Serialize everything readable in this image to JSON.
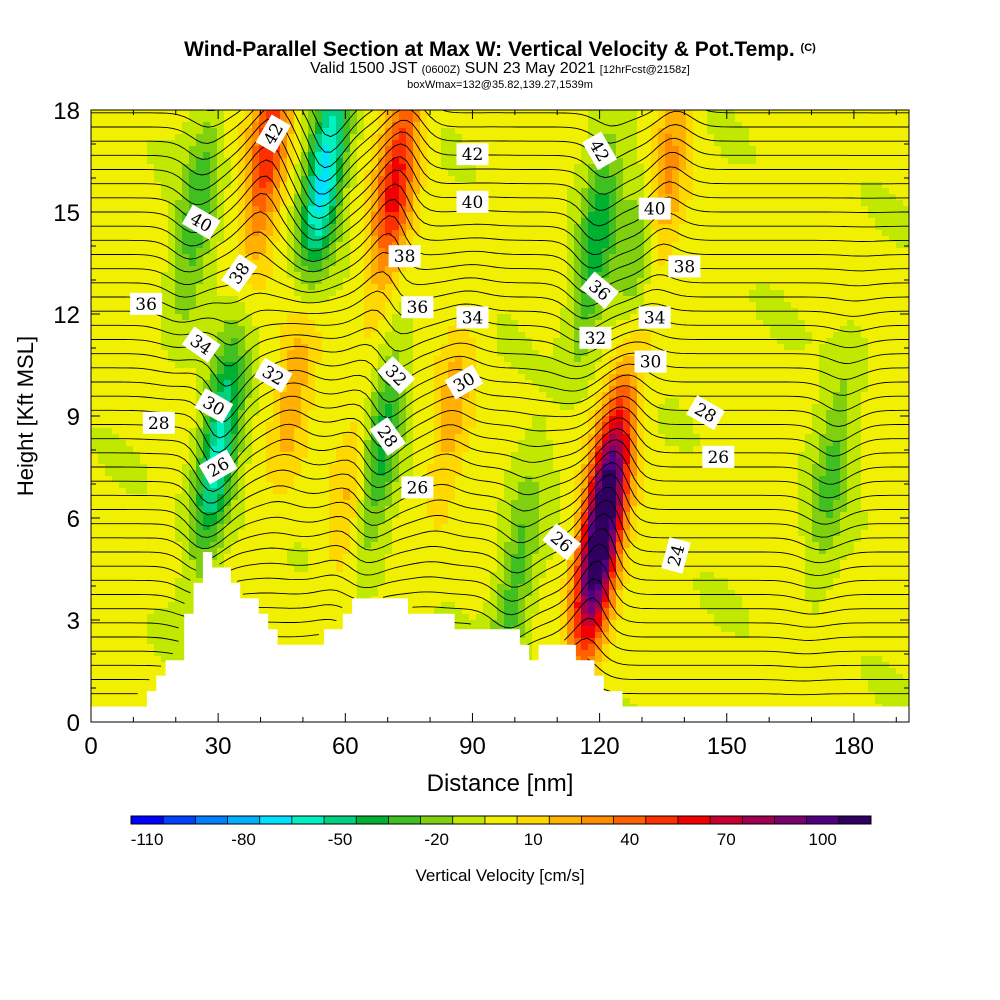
{
  "header": {
    "title": "Wind-Parallel Section at Max W: Vertical Velocity & Pot.Temp.",
    "copyright": "(C)",
    "valid_prefix": "Valid 1500 JST",
    "valid_utc": "(0600Z)",
    "valid_date": "SUN 23 May 2021",
    "forecast_info": "[12hrFcst@2158z]",
    "box_info": "boxWmax=132@35.82,139.27,1539m"
  },
  "chart_data": {
    "type": "heatmap",
    "xlabel": "Distance [nm]",
    "ylabel": "Height [Kft MSL]",
    "xlim": [
      0,
      193
    ],
    "ylim": [
      0,
      18
    ],
    "x_ticks": [
      0,
      30,
      60,
      90,
      120,
      150,
      180
    ],
    "y_ticks": [
      0,
      3,
      6,
      9,
      12,
      15,
      18
    ],
    "x_tick_labels": [
      "0",
      "30",
      "60",
      "90",
      "120",
      "150",
      "180"
    ],
    "y_tick_labels": [
      "0",
      "3",
      "6",
      "9",
      "12",
      "15",
      "18"
    ],
    "colorbar": {
      "label": "Vertical Velocity [cm/s]",
      "labels": [
        "-110",
        "-80",
        "-50",
        "-20",
        "10",
        "40",
        "70",
        "100"
      ],
      "label_values": [
        -110,
        -80,
        -50,
        -20,
        10,
        40,
        70,
        100
      ],
      "min": -110,
      "max": 120,
      "step": 10,
      "colors": [
        "#0000ff",
        "#0040ff",
        "#0080ff",
        "#00b0ff",
        "#00e0ff",
        "#00f0c0",
        "#00d080",
        "#00b030",
        "#40c020",
        "#80d010",
        "#c0e800",
        "#f0f000",
        "#ffd800",
        "#ffb000",
        "#ff8c00",
        "#ff6000",
        "#ff3000",
        "#f00000",
        "#c80030",
        "#a00050",
        "#780070",
        "#500080",
        "#300060"
      ]
    },
    "updrafts": [
      {
        "x": 120,
        "y": 5.3,
        "w": 130
      },
      {
        "x": 72,
        "y": 16,
        "w": 60
      },
      {
        "x": 42,
        "y": 17,
        "w": 55
      },
      {
        "x": 48,
        "y": 10,
        "w": 25
      },
      {
        "x": 135,
        "y": 16,
        "w": 40
      },
      {
        "x": 125,
        "y": 9,
        "w": 30
      },
      {
        "x": 85,
        "y": 9,
        "w": 20
      },
      {
        "x": 62,
        "y": 7,
        "w": 20
      }
    ],
    "downdrafts": [
      {
        "x": 30,
        "y": 8,
        "w": -60
      },
      {
        "x": 55,
        "y": 16,
        "w": -70
      },
      {
        "x": 68,
        "y": 8,
        "w": -40
      },
      {
        "x": 119,
        "y": 14,
        "w": -40
      },
      {
        "x": 130,
        "y": 14,
        "w": -35
      },
      {
        "x": 100,
        "y": 4,
        "w": -30
      },
      {
        "x": 175,
        "y": 7.5,
        "w": -25
      },
      {
        "x": 25,
        "y": 15,
        "w": -30
      }
    ],
    "terrain": [
      {
        "x": 0,
        "h": 0.3
      },
      {
        "x": 10,
        "h": 0.5
      },
      {
        "x": 20,
        "h": 2.0
      },
      {
        "x": 26,
        "h": 4.9
      },
      {
        "x": 33,
        "h": 4.2
      },
      {
        "x": 43,
        "h": 2.5
      },
      {
        "x": 50,
        "h": 2.0
      },
      {
        "x": 57,
        "h": 2.8
      },
      {
        "x": 63,
        "h": 3.7
      },
      {
        "x": 70,
        "h": 3.6
      },
      {
        "x": 78,
        "h": 3.2
      },
      {
        "x": 85,
        "h": 2.9
      },
      {
        "x": 97,
        "h": 2.8
      },
      {
        "x": 103,
        "h": 2.0
      },
      {
        "x": 110,
        "h": 2.3
      },
      {
        "x": 118,
        "h": 1.8
      },
      {
        "x": 120,
        "h": 1.0
      },
      {
        "x": 126,
        "h": 0.5
      },
      {
        "x": 130,
        "h": 0.3
      },
      {
        "x": 193,
        "h": 0.3
      }
    ],
    "theta_contours": {
      "min": 22,
      "max": 44,
      "step": 0.5,
      "labels": [
        {
          "text": "42",
          "x": 43,
          "y": 17.3,
          "angle": -60
        },
        {
          "text": "40",
          "x": 26,
          "y": 14.7,
          "angle": 30
        },
        {
          "text": "38",
          "x": 35,
          "y": 13.2,
          "angle": -55
        },
        {
          "text": "36",
          "x": 13,
          "y": 12.3,
          "angle": 0
        },
        {
          "text": "34",
          "x": 26,
          "y": 11.1,
          "angle": 35
        },
        {
          "text": "32",
          "x": 43,
          "y": 10.2,
          "angle": 30
        },
        {
          "text": "30",
          "x": 29,
          "y": 9.3,
          "angle": 30
        },
        {
          "text": "28",
          "x": 16,
          "y": 8.8,
          "angle": 0
        },
        {
          "text": "26",
          "x": 30,
          "y": 7.5,
          "angle": -30
        },
        {
          "text": "42",
          "x": 90,
          "y": 16.7,
          "angle": 0
        },
        {
          "text": "40",
          "x": 90,
          "y": 15.3,
          "angle": 0
        },
        {
          "text": "38",
          "x": 74,
          "y": 13.7,
          "angle": 0
        },
        {
          "text": "36",
          "x": 77,
          "y": 12.2,
          "angle": 0
        },
        {
          "text": "34",
          "x": 90,
          "y": 11.9,
          "angle": 0
        },
        {
          "text": "32",
          "x": 72,
          "y": 10.2,
          "angle": 45
        },
        {
          "text": "30",
          "x": 88,
          "y": 10.0,
          "angle": -30
        },
        {
          "text": "28",
          "x": 70,
          "y": 8.4,
          "angle": 55
        },
        {
          "text": "26",
          "x": 77,
          "y": 6.9,
          "angle": 0
        },
        {
          "text": "42",
          "x": 120,
          "y": 16.8,
          "angle": 60
        },
        {
          "text": "40",
          "x": 133,
          "y": 15.1,
          "angle": 0
        },
        {
          "text": "38",
          "x": 140,
          "y": 13.4,
          "angle": 0
        },
        {
          "text": "36",
          "x": 120,
          "y": 12.7,
          "angle": 40
        },
        {
          "text": "34",
          "x": 133,
          "y": 11.9,
          "angle": 0
        },
        {
          "text": "32",
          "x": 119,
          "y": 11.3,
          "angle": 0
        },
        {
          "text": "30",
          "x": 132,
          "y": 10.6,
          "angle": 0
        },
        {
          "text": "28",
          "x": 145,
          "y": 9.1,
          "angle": 30
        },
        {
          "text": "26",
          "x": 148,
          "y": 7.8,
          "angle": 0
        },
        {
          "text": "26",
          "x": 111,
          "y": 5.3,
          "angle": 40
        },
        {
          "text": "24",
          "x": 138,
          "y": 4.9,
          "angle": -75
        }
      ]
    }
  }
}
